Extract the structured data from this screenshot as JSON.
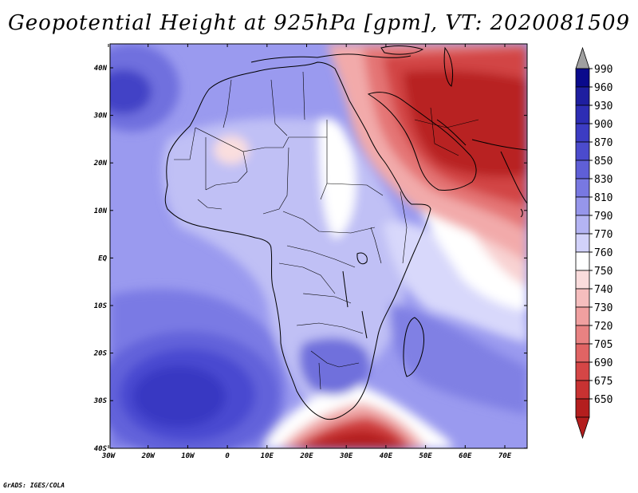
{
  "title": "Geopotential Height at 925hPa [gpm], VT: 2020081509",
  "credit": "GrADS: IGES/COLA",
  "axes": {
    "lat_labels": [
      "40N",
      "30N",
      "20N",
      "10N",
      "EQ",
      "10S",
      "20S",
      "30S",
      "40S"
    ],
    "lon_labels": [
      "30W",
      "20W",
      "10W",
      "0",
      "10E",
      "20E",
      "30E",
      "40E",
      "50E",
      "60E",
      "70E"
    ]
  },
  "colorbar": {
    "levels": [
      "990",
      "960",
      "930",
      "900",
      "870",
      "850",
      "830",
      "810",
      "790",
      "770",
      "760",
      "750",
      "740",
      "730",
      "720",
      "705",
      "690",
      "675",
      "650"
    ],
    "colors": [
      "#0a0a8c",
      "#1e1ea0",
      "#2d2db4",
      "#3c3cc3",
      "#4b4bcd",
      "#5f5fd7",
      "#7878e1",
      "#9696eb",
      "#b4b4f3",
      "#d2d2fa",
      "#ffffff",
      "#fadcdc",
      "#f5bebe",
      "#f0a0a0",
      "#e88282",
      "#e06464",
      "#d54646",
      "#c83232",
      "#b41e1e"
    ],
    "top_triangle_color": "#a0a0a0",
    "bottom_triangle_color": "#b41e1e"
  },
  "map": {
    "regions": [
      {
        "name": "background-ocean",
        "color": "#9a9aef"
      },
      {
        "name": "south-atlantic-low-band",
        "color": "#7a7ae4"
      },
      {
        "name": "south-atlantic-high-outer",
        "color": "#6262da"
      },
      {
        "name": "south-atlantic-high-inner",
        "color": "#4a4ad0"
      },
      {
        "name": "south-atlantic-high-core",
        "color": "#3838c2"
      },
      {
        "name": "north-atlantic-high-outer",
        "color": "#7070de"
      },
      {
        "name": "north-atlantic-high-core",
        "color": "#4242c6"
      },
      {
        "name": "africa-light",
        "color": "#c0c0f5"
      },
      {
        "name": "east-africa-light",
        "color": "#d8d8fb"
      },
      {
        "name": "indian-ocean-white",
        "color": "#ffffff"
      },
      {
        "name": "indian-ocean-pink",
        "color": "#f8d2d2"
      },
      {
        "name": "sahara-white-patch",
        "color": "#ffffff"
      },
      {
        "name": "sahara-pink-patch",
        "color": "#fadede"
      },
      {
        "name": "middle-east-outer",
        "color": "#f2aaaa"
      },
      {
        "name": "middle-east-mid",
        "color": "#e47474"
      },
      {
        "name": "middle-east-inner",
        "color": "#d24545"
      },
      {
        "name": "middle-east-core",
        "color": "#b82020"
      },
      {
        "name": "southern-ocean-white",
        "color": "#ffffff"
      },
      {
        "name": "southern-ocean-pink",
        "color": "#f0a8a8"
      },
      {
        "name": "southern-ocean-red",
        "color": "#d04040"
      },
      {
        "name": "southern-ocean-core",
        "color": "#b41e1e"
      },
      {
        "name": "southern-africa-blue",
        "color": "#7070dc"
      },
      {
        "name": "madagascar-band",
        "color": "#8080e4"
      }
    ]
  }
}
